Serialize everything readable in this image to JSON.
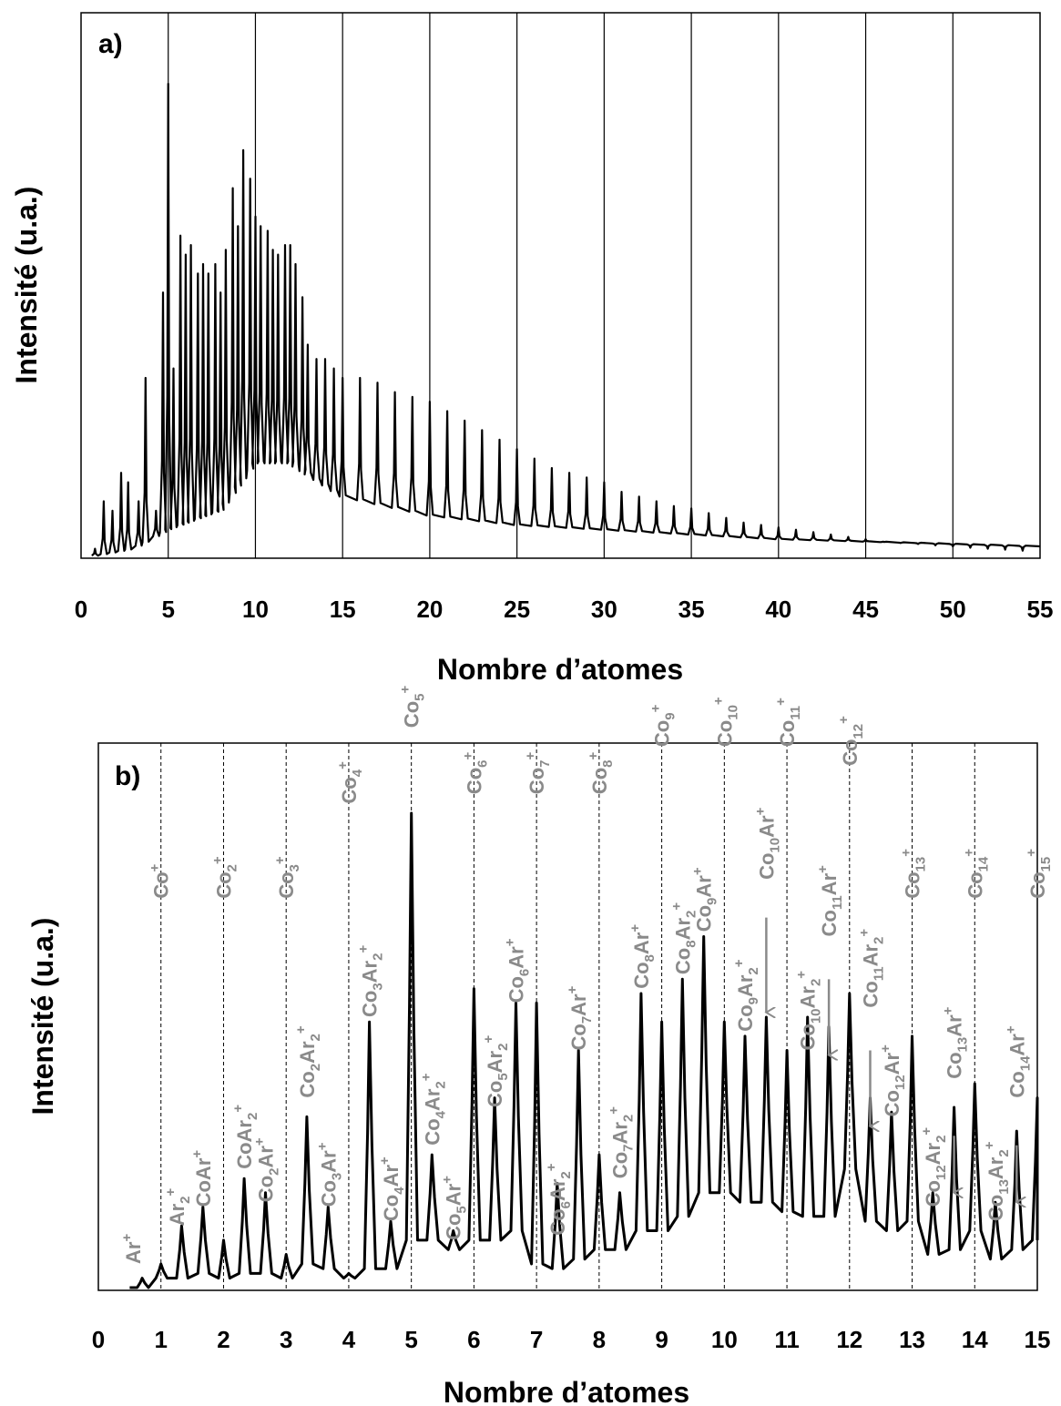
{
  "chart_data": [
    {
      "type": "line",
      "panel_label": "a)",
      "xlabel": "Nombre d’atomes",
      "ylabel": "Intensité (u.a.)",
      "xlim": [
        0,
        55
      ],
      "x_ticks": [
        "0",
        "5",
        "10",
        "15",
        "20",
        "25",
        "30",
        "35",
        "40",
        "45",
        "50",
        "55"
      ],
      "vertical_lines": [
        5,
        10,
        15,
        20,
        25,
        30,
        35,
        40,
        45,
        50
      ],
      "grid": "vertical solid lines at multiples of 5",
      "series": [
        {
          "peak_x": [
            0.8,
            1.3,
            1.8,
            2.3,
            2.7,
            3.3,
            3.7,
            4.3,
            4.7,
            5.0,
            5.3,
            5.7,
            6.0,
            6.3,
            6.7,
            7.0,
            7.3,
            7.7,
            8.0,
            8.3,
            8.7,
            9.0,
            9.3,
            9.7,
            10.0,
            10.3,
            10.7,
            11.0,
            11.3,
            11.7,
            12.0,
            12.3,
            12.7,
            13.0,
            13.5,
            14.0,
            14.5,
            15.0,
            16.0,
            17.0,
            18.0,
            19.0,
            20.0,
            21.0,
            22.0,
            23.0,
            24.0,
            25.0,
            26.0,
            27.0,
            28.0,
            29.0,
            30.0,
            31.0,
            32.0,
            33.0,
            34.0,
            35.0,
            36.0,
            37.0,
            38.0,
            39.0,
            40.0,
            41.0,
            42.0,
            43.0,
            44.0,
            45.0,
            46.0,
            47.0,
            48.0,
            49.0,
            50.0,
            51.0,
            52.0,
            53.0,
            54.0
          ],
          "peak_y": [
            0.02,
            0.12,
            0.1,
            0.18,
            0.16,
            0.12,
            0.38,
            0.1,
            0.56,
            1.0,
            0.4,
            0.68,
            0.64,
            0.66,
            0.6,
            0.62,
            0.6,
            0.62,
            0.56,
            0.65,
            0.78,
            0.7,
            0.86,
            0.8,
            0.72,
            0.7,
            0.69,
            0.65,
            0.64,
            0.66,
            0.66,
            0.62,
            0.55,
            0.45,
            0.42,
            0.42,
            0.4,
            0.38,
            0.38,
            0.37,
            0.35,
            0.34,
            0.33,
            0.31,
            0.29,
            0.27,
            0.25,
            0.23,
            0.21,
            0.19,
            0.18,
            0.17,
            0.16,
            0.14,
            0.13,
            0.12,
            0.11,
            0.105,
            0.095,
            0.085,
            0.075,
            0.07,
            0.065,
            0.06,
            0.055,
            0.05,
            0.045,
            0.04,
            0.035,
            0.032,
            0.03,
            0.027,
            0.025,
            0.022,
            0.02,
            0.018,
            0.016
          ],
          "baseline_x": [
            0,
            3,
            5,
            8,
            10,
            12,
            15,
            20,
            25,
            30,
            35,
            40,
            45,
            50,
            55
          ],
          "baseline_y": [
            0.0,
            0.02,
            0.06,
            0.1,
            0.2,
            0.2,
            0.13,
            0.09,
            0.07,
            0.06,
            0.05,
            0.04,
            0.035,
            0.03,
            0.025
          ]
        }
      ]
    },
    {
      "type": "line",
      "panel_label": "b)",
      "xlabel": "Nombre d’atomes",
      "ylabel": "Intensité (u.a.)",
      "xlim": [
        0,
        15
      ],
      "x_ticks": [
        "0",
        "1",
        "2",
        "3",
        "4",
        "5",
        "6",
        "7",
        "8",
        "9",
        "10",
        "11",
        "12",
        "13",
        "14",
        "15"
      ],
      "vertical_lines": [
        1,
        2,
        3,
        4,
        5,
        6,
        7,
        8,
        9,
        10,
        11,
        12,
        13,
        14
      ],
      "grid": "vertical dashed lines at integers",
      "series": [
        {
          "peak_x": [
            0.7,
            1.0,
            1.33,
            1.67,
            2.0,
            2.33,
            2.67,
            3.0,
            3.33,
            3.67,
            4.0,
            4.33,
            4.67,
            5.0,
            5.33,
            5.67,
            6.0,
            6.33,
            6.67,
            7.0,
            7.33,
            7.67,
            8.0,
            8.33,
            8.67,
            9.0,
            9.33,
            9.67,
            10.0,
            10.33,
            10.67,
            11.0,
            11.33,
            11.67,
            12.0,
            12.33,
            12.67,
            13.0,
            13.33,
            13.67,
            14.0,
            14.33,
            14.67,
            15.0
          ],
          "peak_y": [
            0.02,
            0.05,
            0.13,
            0.17,
            0.1,
            0.23,
            0.2,
            0.07,
            0.36,
            0.17,
            0.03,
            0.56,
            0.14,
            1.0,
            0.28,
            0.12,
            0.63,
            0.4,
            0.6,
            0.6,
            0.22,
            0.5,
            0.28,
            0.2,
            0.62,
            0.56,
            0.65,
            0.74,
            0.56,
            0.53,
            0.57,
            0.5,
            0.57,
            0.55,
            0.62,
            0.4,
            0.37,
            0.53,
            0.2,
            0.38,
            0.43,
            0.18,
            0.33,
            0.4
          ],
          "valley_y": [
            0.0,
            0.02,
            0.02,
            0.03,
            0.02,
            0.03,
            0.03,
            0.02,
            0.05,
            0.04,
            0.02,
            0.04,
            0.04,
            0.1,
            0.1,
            0.08,
            0.1,
            0.1,
            0.12,
            0.05,
            0.04,
            0.06,
            0.08,
            0.08,
            0.12,
            0.12,
            0.15,
            0.2,
            0.2,
            0.18,
            0.18,
            0.16,
            0.15,
            0.15,
            0.25,
            0.14,
            0.12,
            0.14,
            0.07,
            0.08,
            0.12,
            0.06,
            0.08,
            0.1
          ]
        }
      ],
      "annotations": [
        {
          "text": "Ar",
          "sup": "+",
          "x": 0.55,
          "y": 0.05
        },
        {
          "text": "Co",
          "sup": "+",
          "x": 1.0,
          "y": 0.82
        },
        {
          "text": "Ar",
          "sub": "2",
          "sup": "+",
          "x": 1.25,
          "y": 0.13
        },
        {
          "text": "CoAr",
          "sup": "+",
          "x": 1.67,
          "y": 0.17
        },
        {
          "text": "Co",
          "sub": "2",
          "sup": "+",
          "x": 2.0,
          "y": 0.82
        },
        {
          "text": "CoAr",
          "sub": "2",
          "sup": "+",
          "x": 2.33,
          "y": 0.25
        },
        {
          "text": "Co",
          "sub": "2",
          "tail": "Ar",
          "sup": "+",
          "x": 2.67,
          "y": 0.18
        },
        {
          "text": "Co",
          "sub": "3",
          "sup": "+",
          "x": 3.0,
          "y": 0.82
        },
        {
          "text": "Co",
          "sub": "2",
          "tail": "Ar",
          "sub2": "2",
          "sup": "+",
          "x": 3.33,
          "y": 0.4
        },
        {
          "text": "Co",
          "sub": "3",
          "tail": "Ar",
          "sup": "+",
          "x": 3.67,
          "y": 0.17
        },
        {
          "text": "Co",
          "sub": "4",
          "sup": "+",
          "x": 4.0,
          "y": 1.02
        },
        {
          "text": "Co",
          "sub": "3",
          "tail": "Ar",
          "sub2": "2",
          "sup": "+",
          "x": 4.33,
          "y": 0.57
        },
        {
          "text": "Co",
          "sub": "4",
          "tail": "Ar",
          "sup": "+",
          "x": 4.67,
          "y": 0.14
        },
        {
          "text": "Co",
          "sub": "5",
          "sup": "+",
          "x": 5.0,
          "y": 1.18
        },
        {
          "text": "Co",
          "sub": "4",
          "tail": "Ar",
          "sub2": "2",
          "sup": "+",
          "x": 5.33,
          "y": 0.3
        },
        {
          "text": "Co",
          "sub": "5",
          "tail": "Ar",
          "sup": "+",
          "x": 5.67,
          "y": 0.1
        },
        {
          "text": "Co",
          "sub": "6",
          "sup": "+",
          "x": 6.0,
          "y": 1.04
        },
        {
          "text": "Co",
          "sub": "5",
          "tail": "Ar",
          "sub2": "2",
          "sup": "+",
          "x": 6.33,
          "y": 0.38
        },
        {
          "text": "Co",
          "sub": "6",
          "tail": "Ar",
          "sup": "+",
          "x": 6.67,
          "y": 0.6
        },
        {
          "text": "Co",
          "sub": "7",
          "sup": "+",
          "x": 7.0,
          "y": 1.04
        },
        {
          "text": "Co",
          "sub": "6",
          "tail": "Ar",
          "sub2": "2",
          "sup": "+",
          "x": 7.33,
          "y": 0.11
        },
        {
          "text": "Co",
          "sub": "7",
          "tail": "Ar",
          "sup": "+",
          "x": 7.67,
          "y": 0.5
        },
        {
          "text": "Co",
          "sub": "8",
          "sup": "+",
          "x": 8.0,
          "y": 1.04
        },
        {
          "text": "Co",
          "sub": "7",
          "tail": "Ar",
          "sub2": "2",
          "sup": "+",
          "x": 8.33,
          "y": 0.23
        },
        {
          "text": "Co",
          "sub": "8",
          "tail": "Ar",
          "sup": "+",
          "x": 8.67,
          "y": 0.63
        },
        {
          "text": "Co",
          "sub": "9",
          "sup": "+",
          "x": 9.0,
          "y": 1.14
        },
        {
          "text": "Co",
          "sub": "8",
          "tail": "Ar",
          "sub2": "2",
          "sup": "+",
          "x": 9.33,
          "y": 0.66
        },
        {
          "text": "Co",
          "sub": "9",
          "tail": "Ar",
          "sup": "+",
          "x": 9.67,
          "y": 0.75
        },
        {
          "text": "Co",
          "sub": "10",
          "sup": "+",
          "x": 10.0,
          "y": 1.14
        },
        {
          "text": "Co",
          "sub": "9",
          "tail": "Ar",
          "sub2": "2",
          "sup": "+",
          "x": 10.33,
          "y": 0.54
        },
        {
          "text": "Co",
          "sub": "10",
          "tail": "Ar",
          "sup": "+",
          "x": 10.67,
          "y": 0.86
        },
        {
          "text": "Co",
          "sub": "11",
          "sup": "+",
          "x": 11.0,
          "y": 1.14
        },
        {
          "text": "Co",
          "sub": "10",
          "tail": "Ar",
          "sub2": "2",
          "sup": "+",
          "x": 11.33,
          "y": 0.5
        },
        {
          "text": "Co",
          "sub": "11",
          "tail": "Ar",
          "sup": "+",
          "x": 11.67,
          "y": 0.74
        },
        {
          "text": "Co",
          "sub": "12",
          "sup": "+",
          "x": 12.0,
          "y": 1.1
        },
        {
          "text": "Co",
          "sub": "11",
          "tail": "Ar",
          "sub2": "2",
          "sup": "+",
          "x": 12.33,
          "y": 0.59
        },
        {
          "text": "Co",
          "sub": "12",
          "tail": "Ar",
          "sup": "+",
          "x": 12.67,
          "y": 0.36
        },
        {
          "text": "Co",
          "sub": "13",
          "sup": "+",
          "x": 13.0,
          "y": 0.82
        },
        {
          "text": "Co",
          "sub": "12",
          "tail": "Ar",
          "sub2": "2",
          "sup": "+",
          "x": 13.33,
          "y": 0.17
        },
        {
          "text": "Co",
          "sub": "13",
          "tail": "Ar",
          "sup": "+",
          "x": 13.67,
          "y": 0.44
        },
        {
          "text": "Co",
          "sub": "14",
          "sup": "+",
          "x": 14.0,
          "y": 0.82
        },
        {
          "text": "Co",
          "sub": "13",
          "tail": "Ar",
          "sub2": "2",
          "sup": "+",
          "x": 14.33,
          "y": 0.14
        },
        {
          "text": "Co",
          "sub": "14",
          "tail": "Ar",
          "sup": "+",
          "x": 14.67,
          "y": 0.4
        },
        {
          "text": "Co",
          "sub": "15",
          "sup": "+",
          "x": 15.0,
          "y": 0.82
        }
      ],
      "arrows": [
        {
          "x": 10.67,
          "from": 0.78,
          "to": 0.58
        },
        {
          "x": 11.67,
          "from": 0.65,
          "to": 0.49
        },
        {
          "x": 12.33,
          "from": 0.5,
          "to": 0.34
        },
        {
          "x": 13.67,
          "from": 0.32,
          "to": 0.2
        },
        {
          "x": 14.67,
          "from": 0.3,
          "to": 0.18
        }
      ]
    }
  ]
}
